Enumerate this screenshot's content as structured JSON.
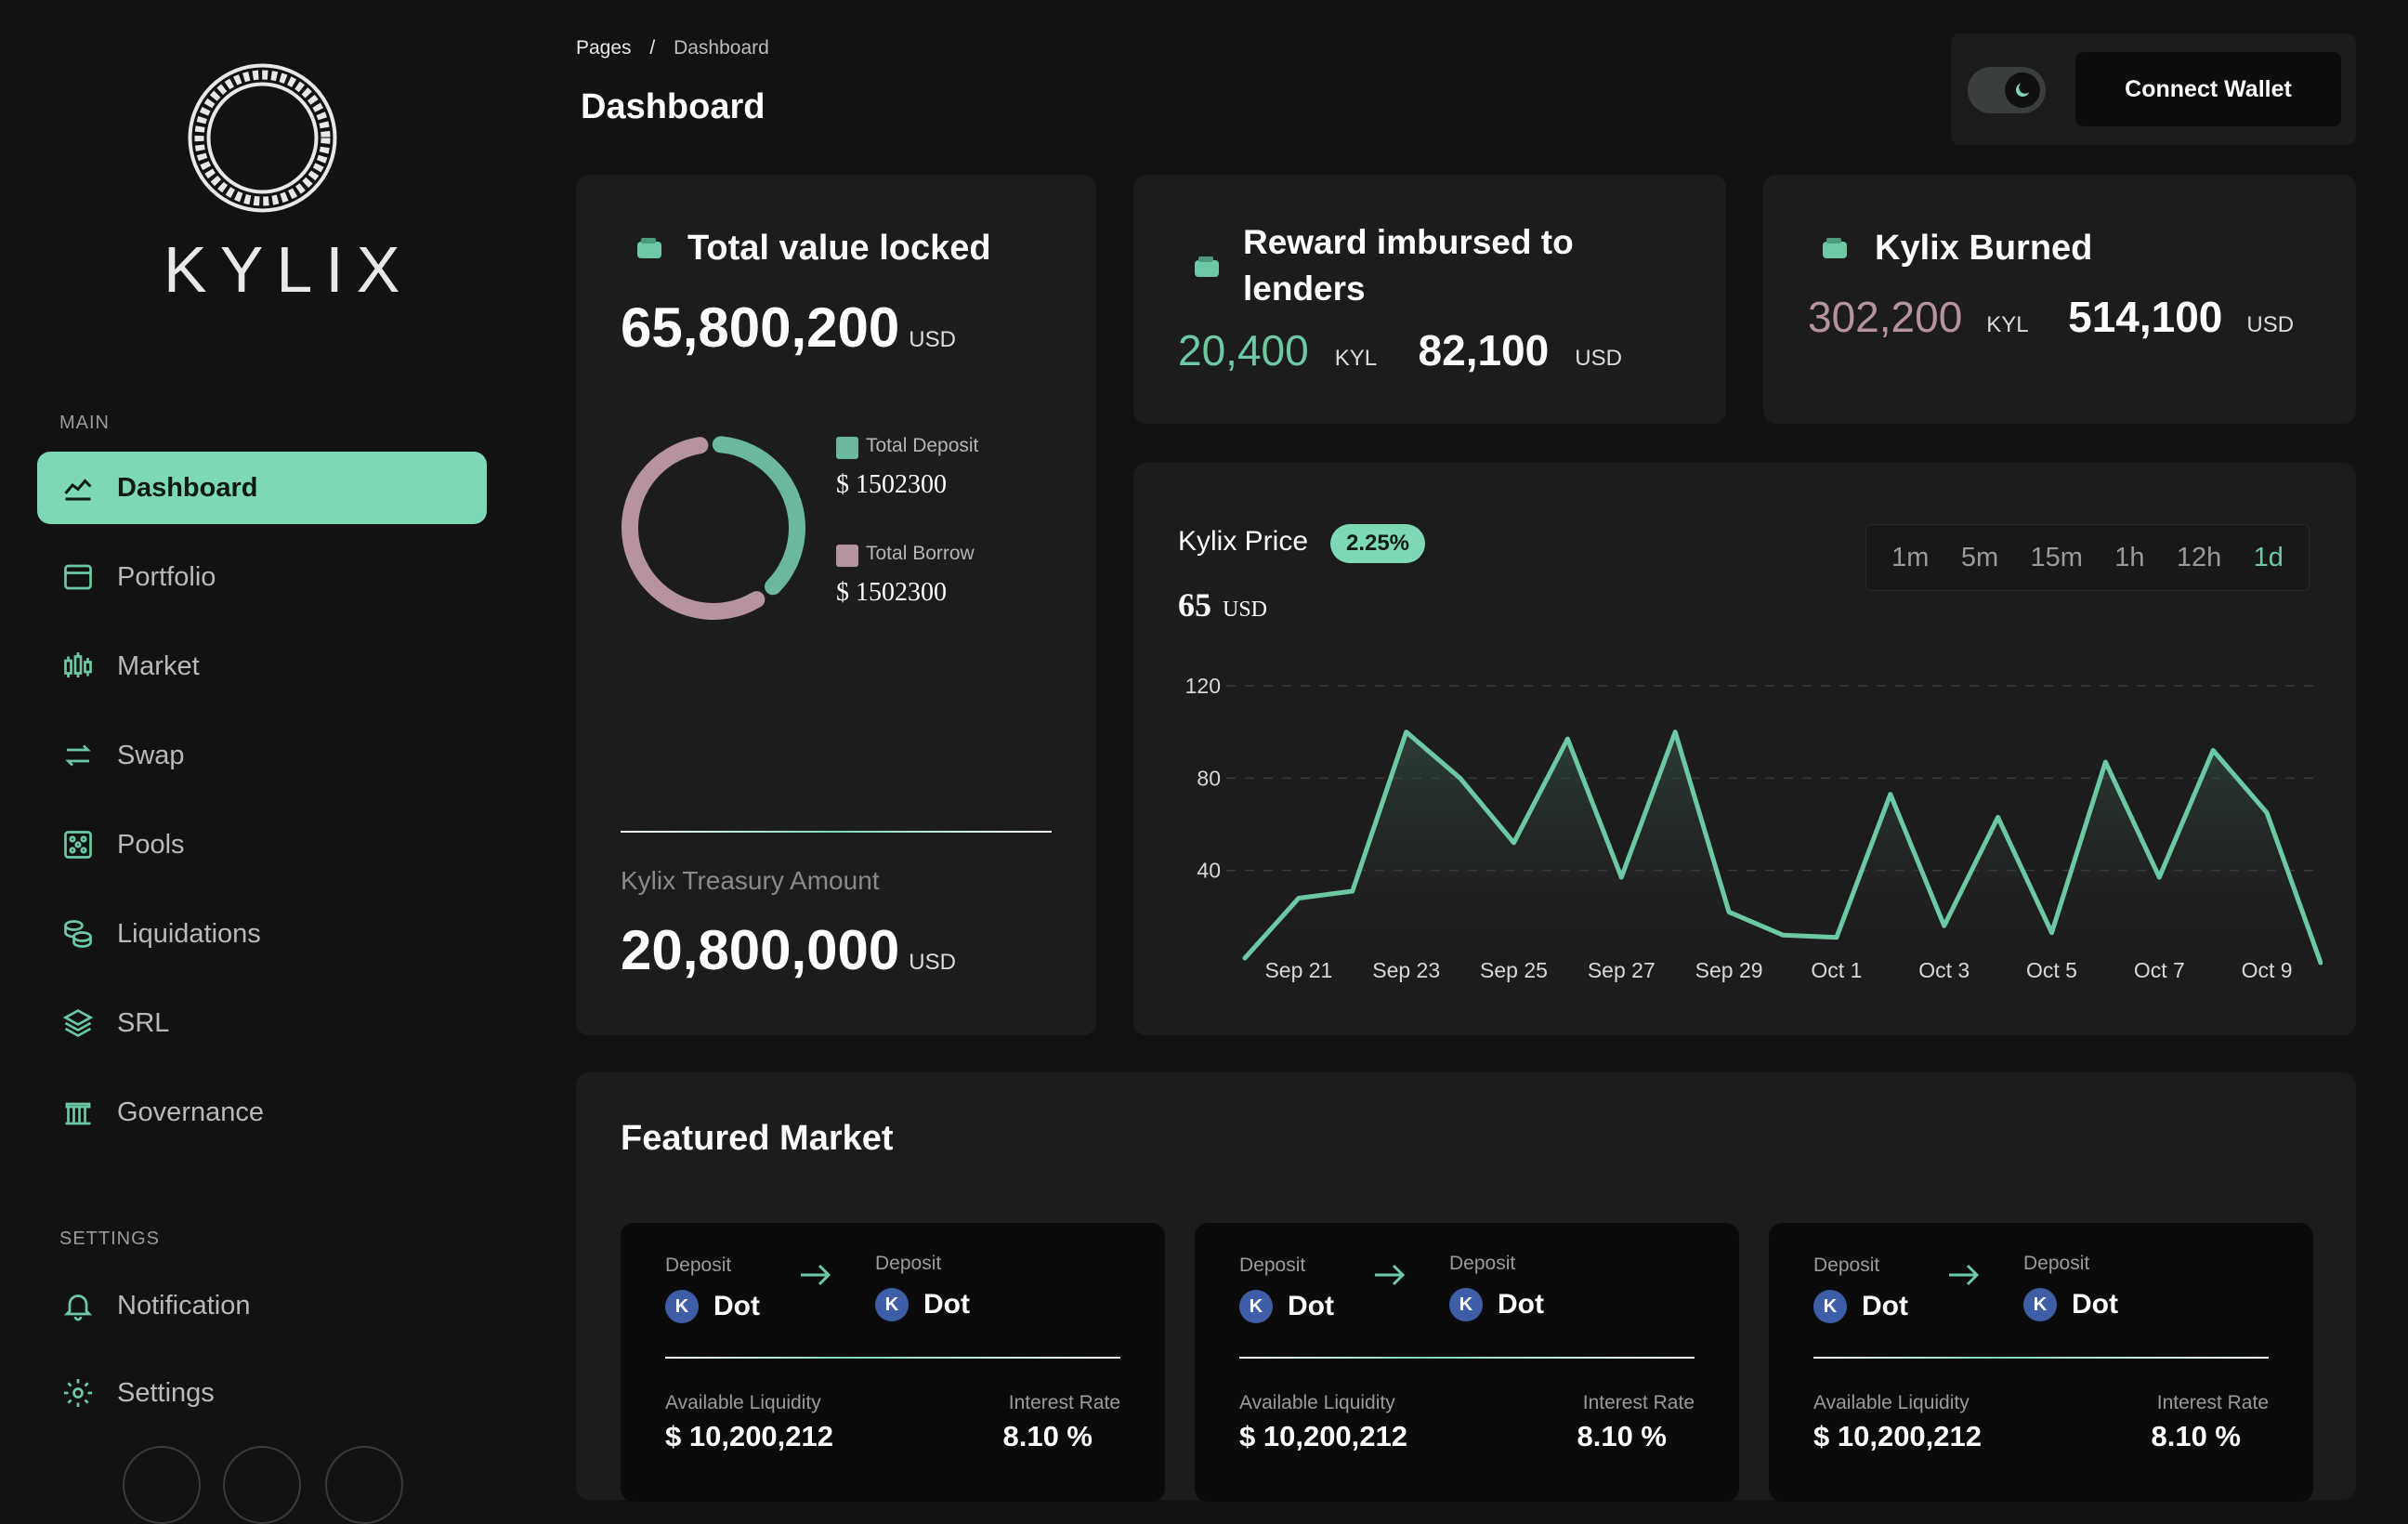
{
  "brand": {
    "name": "KYLIX"
  },
  "sidebar": {
    "main_label": "MAIN",
    "settings_label": "SETTINGS",
    "items": [
      {
        "label": "Dashboard",
        "icon": "chart-area-icon"
      },
      {
        "label": "Portfolio",
        "icon": "window-icon"
      },
      {
        "label": "Market",
        "icon": "candlestick-icon"
      },
      {
        "label": "Swap",
        "icon": "swap-arrows-icon"
      },
      {
        "label": "Pools",
        "icon": "dots-grid-icon"
      },
      {
        "label": "Liquidations",
        "icon": "coins-icon"
      },
      {
        "label": "SRL",
        "icon": "layers-icon"
      },
      {
        "label": "Governance",
        "icon": "bank-icon"
      }
    ],
    "settings_items": [
      {
        "label": "Notification",
        "icon": "bell-icon"
      },
      {
        "label": "Settings",
        "icon": "gear-icon"
      }
    ]
  },
  "header": {
    "breadcrumb_root": "Pages",
    "breadcrumb_sep": "/",
    "breadcrumb_current": "Dashboard",
    "title": "Dashboard",
    "connect_wallet": "Connect Wallet"
  },
  "tvl": {
    "title": "Total value locked",
    "value": "65,800,200",
    "unit": "USD",
    "deposit_label": "Total Deposit",
    "deposit_value": "$ 1502300",
    "borrow_label": "Total Borrow",
    "borrow_value": "$ 1502300",
    "treasury_label": "Kylix Treasury Amount",
    "treasury_value": "20,800,000",
    "treasury_unit": "USD"
  },
  "reward": {
    "title_line1": "Reward imbursed to",
    "title_line2": "lenders",
    "kyl_value": "20,400",
    "kyl_unit": "KYL",
    "usd_value": "82,100",
    "usd_unit": "USD"
  },
  "burned": {
    "title": "Kylix Burned",
    "kyl_value": "302,200",
    "kyl_unit": "KYL",
    "usd_value": "514,100",
    "usd_unit": "USD"
  },
  "price": {
    "title": "Kylix Price",
    "change": "2.25%",
    "value": "65",
    "unit": "USD",
    "timeframes": [
      "1m",
      "5m",
      "15m",
      "1h",
      "12h",
      "1d"
    ],
    "active_timeframe": "1d"
  },
  "chart_data": {
    "type": "area",
    "x": [
      "Sep 20",
      "Sep 21",
      "Sep 22",
      "Sep 23",
      "Sep 24",
      "Sep 25",
      "Sep 26",
      "Sep 27",
      "Sep 28",
      "Sep 29",
      "Sep 30",
      "Oct 1",
      "Oct 2",
      "Oct 3",
      "Oct 4",
      "Oct 5",
      "Oct 6",
      "Oct 7",
      "Oct 8",
      "Oct 9",
      "Oct 10"
    ],
    "tick_labels": [
      "Sep 21",
      "Sep 23",
      "Sep 25",
      "Sep 27",
      "Sep 29",
      "Oct 1",
      "Oct 3",
      "Oct 5",
      "Oct 7",
      "Oct 9"
    ],
    "y_ticks": [
      40,
      80,
      120
    ],
    "ylim": [
      0,
      120
    ],
    "series": [
      {
        "values": [
          2,
          28,
          31,
          100,
          80,
          52,
          97,
          37,
          100,
          22,
          12,
          11,
          73,
          16,
          63,
          13,
          87,
          37,
          92,
          65,
          0
        ]
      }
    ],
    "line_color": "#6cc9a4",
    "grid": "dashed-horizontal"
  },
  "featured": {
    "title": "Featured Market",
    "cards": [
      {
        "from_label": "Deposit",
        "from_token": "Dot",
        "to_label": "Deposit",
        "to_token": "Dot",
        "coin": "K",
        "liq_label": "Available Liquidity",
        "liq_value": "$ 10,200,212",
        "rate_label": "Interest Rate",
        "rate_value": "8.10 %"
      },
      {
        "from_label": "Deposit",
        "from_token": "Dot",
        "to_label": "Deposit",
        "to_token": "Dot",
        "coin": "K",
        "liq_label": "Available Liquidity",
        "liq_value": "$ 10,200,212",
        "rate_label": "Interest Rate",
        "rate_value": "8.10 %"
      },
      {
        "from_label": "Deposit",
        "from_token": "Dot",
        "to_label": "Deposit",
        "to_token": "Dot",
        "coin": "K",
        "liq_label": "Available Liquidity",
        "liq_value": "$ 10,200,212",
        "rate_label": "Interest Rate",
        "rate_value": "8.10 %"
      }
    ]
  },
  "colors": {
    "accent": "#7dd9b4",
    "deposit": "#6cb89d",
    "borrow": "#b7939f",
    "background": "#121212",
    "card": "#1c1c1c"
  }
}
